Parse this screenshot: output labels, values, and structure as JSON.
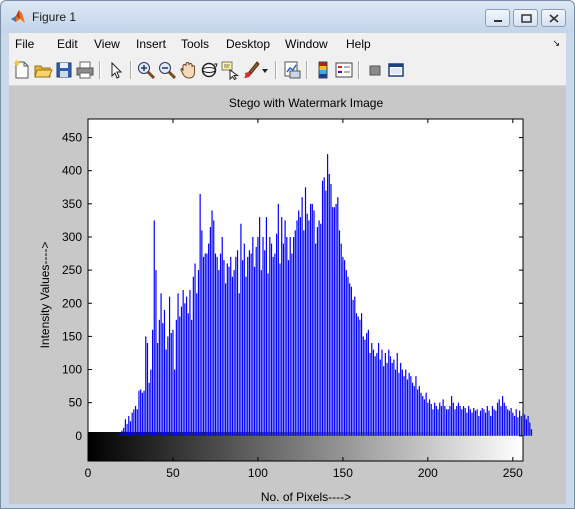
{
  "window": {
    "title": "Figure 1"
  },
  "menu": [
    "File",
    "Edit",
    "View",
    "Insert",
    "Tools",
    "Desktop",
    "Window",
    "Help"
  ],
  "toolbar": [
    "new-figure-icon",
    "open-file-icon",
    "save-icon",
    "print-icon",
    "pointer-icon",
    "zoom-in-icon",
    "zoom-out-icon",
    "pan-hand-icon",
    "rotate-3d-icon",
    "data-cursor-icon",
    "brush-icon",
    "dropdown-arrow-icon",
    "link-plot-icon",
    "colorbar-icon",
    "legend-icon",
    "hide-plot-tools-icon",
    "show-plot-tools-icon"
  ],
  "colors": {
    "bar": "#0000ff",
    "figure_bg": "#c8c8c8",
    "axes_bg": "#ffffff"
  },
  "chart_data": {
    "type": "bar",
    "title": "Stego with Watermark Image",
    "xlabel": "No. of Pixels---->",
    "ylabel": "Intensity Values---->",
    "xlim": [
      0,
      256
    ],
    "ylim": [
      -38,
      478
    ],
    "xticks": [
      "0",
      "50",
      "100",
      "150",
      "200",
      "250"
    ],
    "yticks": [
      "0",
      "50",
      "100",
      "150",
      "200",
      "250",
      "300",
      "350",
      "400",
      "450"
    ],
    "colorbar_below_axis": "grayscale 0-255",
    "x_start": 0,
    "values": [
      0,
      0,
      0,
      0,
      0,
      0,
      0,
      0,
      0,
      0,
      0,
      0,
      0,
      0,
      0,
      0,
      1,
      1,
      2,
      4,
      8,
      12,
      25,
      18,
      30,
      22,
      35,
      40,
      45,
      40,
      68,
      70,
      65,
      68,
      150,
      140,
      80,
      100,
      160,
      325,
      250,
      140,
      175,
      215,
      170,
      190,
      130,
      150,
      210,
      155,
      160,
      100,
      175,
      215,
      180,
      195,
      220,
      200,
      210,
      185,
      220,
      175,
      240,
      260,
      215,
      250,
      365,
      310,
      270,
      275,
      275,
      290,
      315,
      340,
      325,
      275,
      270,
      250,
      275,
      300,
      265,
      230,
      260,
      255,
      270,
      240,
      250,
      270,
      280,
      215,
      320,
      265,
      290,
      240,
      270,
      280,
      275,
      300,
      255,
      285,
      300,
      330,
      250,
      300,
      280,
      330,
      245,
      300,
      290,
      270,
      275,
      305,
      350,
      260,
      330,
      290,
      325,
      300,
      265,
      300,
      275,
      300,
      310,
      325,
      340,
      330,
      360,
      310,
      375,
      335,
      325,
      350,
      350,
      340,
      290,
      315,
      325,
      320,
      385,
      390,
      370,
      425,
      395,
      380,
      345,
      345,
      350,
      360,
      310,
      290,
      270,
      265,
      250,
      240,
      230,
      225,
      205,
      210,
      185,
      180,
      175,
      185,
      150,
      145,
      155,
      160,
      125,
      140,
      130,
      120,
      125,
      140,
      115,
      130,
      105,
      125,
      110,
      130,
      120,
      110,
      115,
      100,
      125,
      95,
      110,
      100,
      90,
      100,
      85,
      95,
      90,
      80,
      75,
      90,
      70,
      75,
      65,
      60,
      55,
      65,
      50,
      55,
      48,
      40,
      50,
      45,
      40,
      50,
      45,
      55,
      45,
      40,
      40,
      45,
      60,
      50,
      40,
      45,
      50,
      45,
      40,
      45,
      42,
      35,
      45,
      40,
      35,
      42,
      38,
      40,
      30,
      38,
      42,
      40,
      35,
      45,
      38,
      30,
      45,
      40,
      38,
      50,
      55,
      45,
      60,
      50,
      45,
      40,
      38,
      42,
      35,
      30,
      40,
      28,
      38,
      30,
      35,
      32,
      25,
      30,
      20,
      10
    ]
  }
}
